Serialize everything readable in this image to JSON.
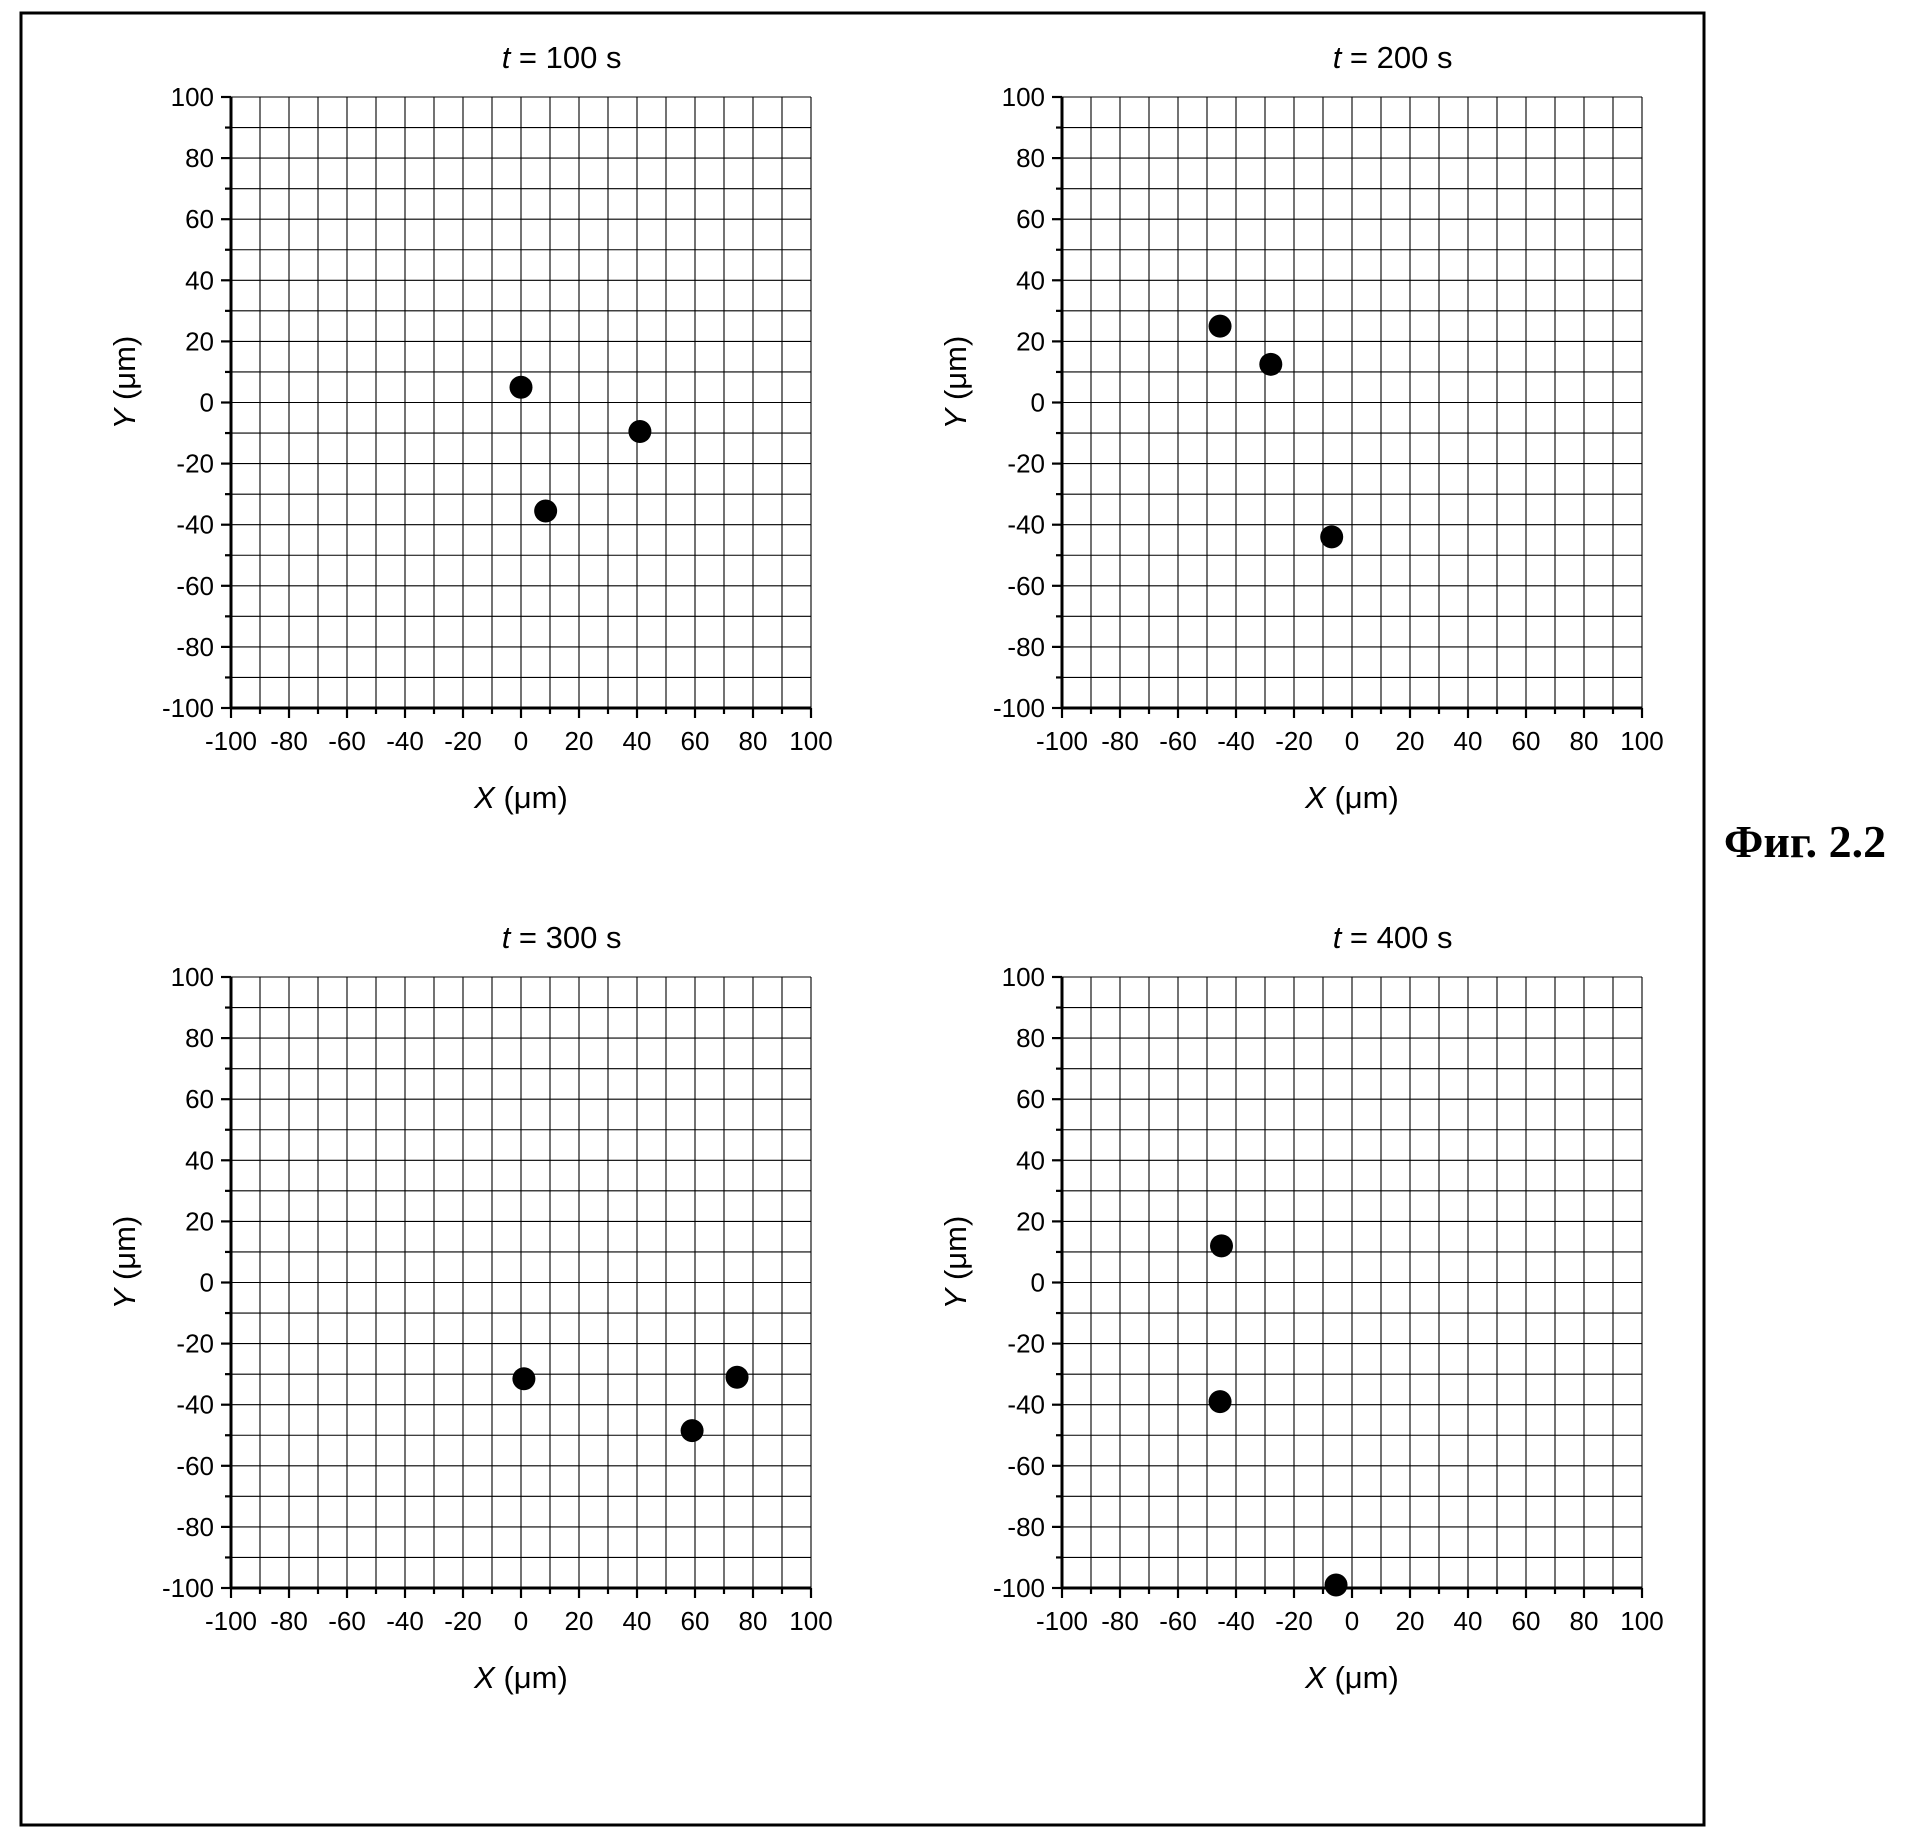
{
  "figure_label": "Фиг. 2.2",
  "chart_data": [
    {
      "type": "scatter",
      "title_var": "t",
      "title_rest": " = 100 s",
      "x_var": "X",
      "x_unit": " (μm)",
      "y_var": "Y",
      "y_unit": " (μm)",
      "xlim": [
        -100,
        100
      ],
      "ylim": [
        -100,
        100
      ],
      "ticks": [
        -100,
        -80,
        -60,
        -40,
        -20,
        0,
        20,
        40,
        60,
        80,
        100
      ],
      "grid": true,
      "points": [
        {
          "x": 0,
          "y": 5
        },
        {
          "x": 8.5,
          "y": -35.5
        },
        {
          "x": 41,
          "y": -9.5
        }
      ]
    },
    {
      "type": "scatter",
      "title_var": "t",
      "title_rest": " = 200 s",
      "x_var": "X",
      "x_unit": " (μm)",
      "y_var": "Y",
      "y_unit": " (μm)",
      "xlim": [
        -100,
        100
      ],
      "ylim": [
        -100,
        100
      ],
      "ticks": [
        -100,
        -80,
        -60,
        -40,
        -20,
        0,
        20,
        40,
        60,
        80,
        100
      ],
      "grid": true,
      "points": [
        {
          "x": -45.5,
          "y": 25
        },
        {
          "x": -28,
          "y": 12.5
        },
        {
          "x": -7,
          "y": -44
        }
      ]
    },
    {
      "type": "scatter",
      "title_var": "t",
      "title_rest": " = 300 s",
      "x_var": "X",
      "x_unit": " (μm)",
      "y_var": "Y",
      "y_unit": " (μm)",
      "xlim": [
        -100,
        100
      ],
      "ylim": [
        -100,
        100
      ],
      "ticks": [
        -100,
        -80,
        -60,
        -40,
        -20,
        0,
        20,
        40,
        60,
        80,
        100
      ],
      "grid": true,
      "points": [
        {
          "x": 1,
          "y": -31.5
        },
        {
          "x": 59,
          "y": -48.5
        },
        {
          "x": 74.5,
          "y": -31
        }
      ]
    },
    {
      "type": "scatter",
      "title_var": "t",
      "title_rest": " = 400 s",
      "x_var": "X",
      "x_unit": " (μm)",
      "y_var": "Y",
      "y_unit": " (μm)",
      "xlim": [
        -100,
        100
      ],
      "ylim": [
        -100,
        100
      ],
      "ticks": [
        -100,
        -80,
        -60,
        -40,
        -20,
        0,
        20,
        40,
        60,
        80,
        100
      ],
      "grid": true,
      "points": [
        {
          "x": -45,
          "y": 12
        },
        {
          "x": -45.5,
          "y": -39
        },
        {
          "x": -5.5,
          "y": -99
        }
      ]
    }
  ]
}
